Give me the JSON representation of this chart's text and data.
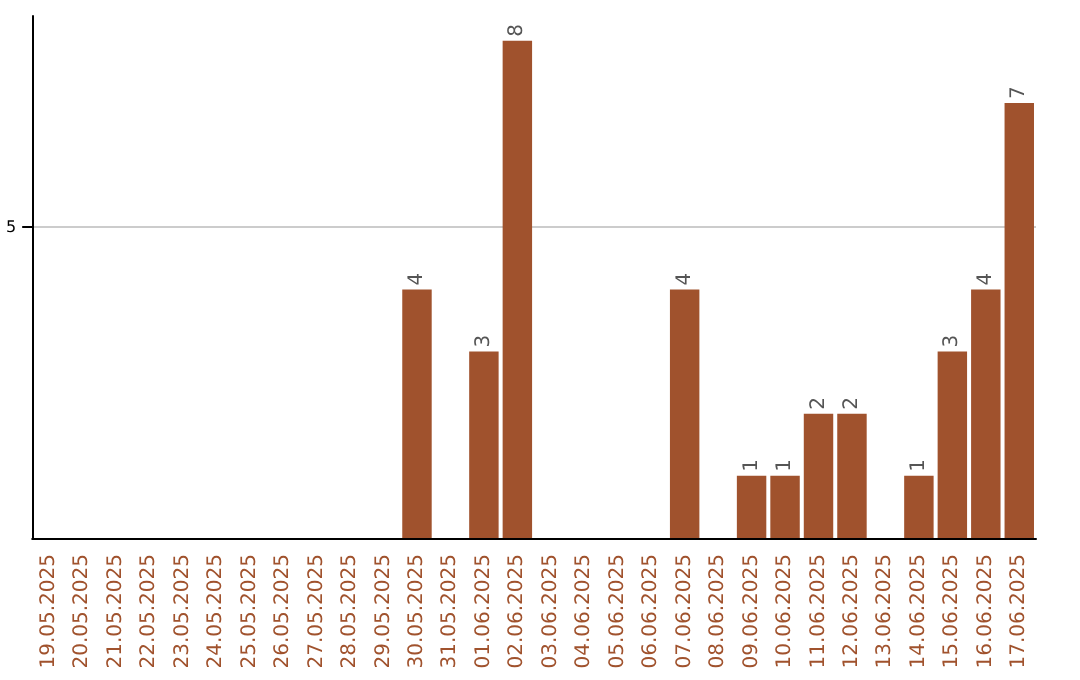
{
  "chart_data": {
    "type": "bar",
    "categories": [
      "19.05.2025",
      "20.05.2025",
      "21.05.2025",
      "22.05.2025",
      "23.05.2025",
      "24.05.2025",
      "25.05.2025",
      "26.05.2025",
      "27.05.2025",
      "28.05.2025",
      "29.05.2025",
      "30.05.2025",
      "31.05.2025",
      "01.06.2025",
      "02.06.2025",
      "03.06.2025",
      "04.06.2025",
      "05.06.2025",
      "06.06.2025",
      "07.06.2025",
      "08.06.2025",
      "09.06.2025",
      "10.06.2025",
      "11.06.2025",
      "12.06.2025",
      "13.06.2025",
      "14.06.2025",
      "15.06.2025",
      "16.06.2025",
      "17.06.2025"
    ],
    "values": [
      0,
      0,
      0,
      0,
      0,
      0,
      0,
      0,
      0,
      0,
      0,
      4,
      0,
      3,
      8,
      0,
      0,
      0,
      0,
      4,
      0,
      1,
      1,
      2,
      2,
      0,
      1,
      3,
      4,
      7
    ],
    "value_labels": [
      null,
      null,
      null,
      null,
      null,
      null,
      null,
      null,
      null,
      null,
      null,
      "4",
      null,
      "3",
      "8",
      null,
      null,
      null,
      null,
      "4",
      null,
      "1",
      "1",
      "2",
      "2",
      null,
      "1",
      "3",
      "4",
      "7"
    ],
    "color": "#a0522d",
    "ylim": [
      0,
      8.4
    ],
    "yticks": [
      5
    ],
    "grid": "y"
  }
}
